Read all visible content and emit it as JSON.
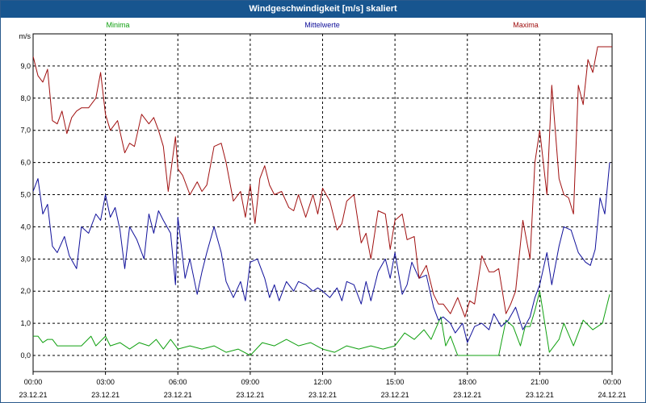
{
  "window": {
    "title": "Windgeschwindigkeit [m/s] skaliert"
  },
  "colors": {
    "min": "#10a010",
    "mean": "#10109a",
    "max": "#a01010",
    "titlebar": "#17558f"
  },
  "chart_data": {
    "type": "line",
    "title": "Windgeschwindigkeit [m/s] skaliert",
    "ylabel": "m/s",
    "xlabel": "",
    "ylim": [
      -0.5,
      10.0
    ],
    "xlim": [
      0,
      24
    ],
    "grid": true,
    "legend_placement": "top",
    "y_ticks": [
      "0,0",
      "1,0",
      "2,0",
      "3,0",
      "4,0",
      "5,0",
      "6,0",
      "7,0",
      "8,0",
      "9,0"
    ],
    "x_ticks": [
      {
        "time": "00:00",
        "date": "23.12.21"
      },
      {
        "time": "03:00",
        "date": "23.12.21"
      },
      {
        "time": "06:00",
        "date": "23.12.21"
      },
      {
        "time": "09:00",
        "date": "23.12.21"
      },
      {
        "time": "12:00",
        "date": "23.12.21"
      },
      {
        "time": "15:00",
        "date": "23.12.21"
      },
      {
        "time": "18:00",
        "date": "23.12.21"
      },
      {
        "time": "21:00",
        "date": "23.12.21"
      },
      {
        "time": "00:00",
        "date": "24.12.21"
      }
    ],
    "series": [
      {
        "name": "Minima",
        "x": [
          0.0,
          0.2,
          0.4,
          0.6,
          0.8,
          1.0,
          1.5,
          2.0,
          2.4,
          2.6,
          3.0,
          3.2,
          3.6,
          4.0,
          4.4,
          4.8,
          5.1,
          5.4,
          5.7,
          6.0,
          6.5,
          7.0,
          7.5,
          8.0,
          8.5,
          9.0,
          9.5,
          10.0,
          10.5,
          11.0,
          11.5,
          12.0,
          12.5,
          13.0,
          13.5,
          14.0,
          14.5,
          15.0,
          15.4,
          15.8,
          16.2,
          16.5,
          16.9,
          17.1,
          17.3,
          17.6,
          18.0,
          18.5,
          19.0,
          19.3,
          19.6,
          19.9,
          20.2,
          20.4,
          20.6,
          20.8,
          21.0,
          21.4,
          21.8,
          22.0,
          22.4,
          22.8,
          23.2,
          23.6,
          23.9
        ],
        "y": [
          0.6,
          0.6,
          0.4,
          0.5,
          0.5,
          0.3,
          0.3,
          0.3,
          0.6,
          0.3,
          0.6,
          0.3,
          0.4,
          0.2,
          0.4,
          0.3,
          0.5,
          0.2,
          0.5,
          0.2,
          0.3,
          0.2,
          0.3,
          0.1,
          0.2,
          0.0,
          0.4,
          0.3,
          0.5,
          0.3,
          0.4,
          0.2,
          0.1,
          0.3,
          0.2,
          0.3,
          0.2,
          0.3,
          0.7,
          0.5,
          0.8,
          0.5,
          1.2,
          0.3,
          0.6,
          0.0,
          0.0,
          0.0,
          0.0,
          0.0,
          1.1,
          0.9,
          0.3,
          0.9,
          0.9,
          1.4,
          2.0,
          0.1,
          0.5,
          1.0,
          0.3,
          1.1,
          0.8,
          1.0,
          1.9
        ]
      },
      {
        "name": "Mittelwerte",
        "x": [
          0.0,
          0.2,
          0.4,
          0.6,
          0.8,
          1.0,
          1.3,
          1.5,
          1.8,
          2.0,
          2.3,
          2.6,
          2.8,
          3.0,
          3.2,
          3.4,
          3.6,
          3.8,
          4.0,
          4.3,
          4.6,
          4.8,
          5.0,
          5.2,
          5.4,
          5.7,
          5.9,
          6.0,
          6.3,
          6.5,
          6.8,
          7.0,
          7.2,
          7.5,
          7.8,
          8.0,
          8.3,
          8.6,
          8.8,
          9.0,
          9.3,
          9.6,
          9.8,
          10.0,
          10.2,
          10.5,
          10.8,
          11.0,
          11.3,
          11.6,
          11.8,
          12.0,
          12.3,
          12.6,
          12.8,
          13.0,
          13.3,
          13.6,
          13.8,
          14.0,
          14.3,
          14.6,
          14.8,
          15.0,
          15.3,
          15.5,
          15.7,
          16.0,
          16.3,
          16.6,
          16.8,
          17.0,
          17.3,
          17.5,
          17.8,
          18.0,
          18.3,
          18.6,
          18.9,
          19.1,
          19.4,
          19.7,
          20.0,
          20.3,
          20.6,
          20.8,
          21.0,
          21.3,
          21.5,
          21.8,
          22.0,
          22.3,
          22.6,
          22.9,
          23.1,
          23.3,
          23.5,
          23.7,
          23.9
        ],
        "y": [
          5.1,
          5.5,
          4.4,
          4.7,
          3.4,
          3.2,
          3.7,
          3.1,
          2.7,
          4.0,
          3.8,
          4.4,
          4.2,
          5.0,
          4.3,
          4.6,
          3.9,
          2.7,
          4.0,
          3.6,
          3.0,
          4.4,
          3.8,
          4.5,
          4.2,
          3.8,
          2.2,
          4.3,
          2.4,
          3.0,
          1.9,
          2.6,
          3.2,
          4.0,
          3.2,
          2.3,
          1.8,
          2.3,
          1.7,
          2.9,
          3.0,
          2.4,
          1.8,
          2.2,
          1.7,
          2.3,
          2.0,
          2.3,
          2.2,
          2.0,
          2.1,
          2.0,
          1.8,
          2.1,
          1.7,
          2.3,
          2.2,
          1.6,
          2.3,
          1.7,
          2.6,
          3.0,
          2.4,
          3.2,
          1.9,
          2.2,
          2.9,
          2.4,
          2.5,
          1.5,
          1.1,
          1.2,
          1.0,
          0.7,
          1.0,
          0.4,
          0.9,
          1.0,
          0.8,
          1.3,
          0.9,
          1.1,
          1.5,
          0.8,
          1.2,
          1.8,
          2.2,
          3.2,
          2.2,
          3.4,
          4.0,
          3.9,
          3.2,
          2.9,
          2.8,
          3.3,
          4.9,
          4.4,
          6.0
        ]
      },
      {
        "name": "Maxima",
        "x": [
          0.0,
          0.2,
          0.4,
          0.6,
          0.8,
          1.0,
          1.2,
          1.4,
          1.6,
          1.8,
          2.0,
          2.3,
          2.6,
          2.8,
          3.0,
          3.2,
          3.5,
          3.8,
          4.0,
          4.2,
          4.5,
          4.8,
          5.0,
          5.2,
          5.4,
          5.6,
          5.9,
          6.0,
          6.2,
          6.5,
          6.8,
          7.0,
          7.2,
          7.5,
          7.8,
          8.0,
          8.3,
          8.6,
          8.8,
          9.0,
          9.2,
          9.4,
          9.6,
          9.8,
          10.0,
          10.3,
          10.6,
          10.8,
          11.0,
          11.3,
          11.6,
          11.8,
          12.0,
          12.3,
          12.6,
          12.8,
          13.0,
          13.3,
          13.6,
          13.8,
          14.0,
          14.3,
          14.6,
          14.8,
          15.0,
          15.3,
          15.5,
          15.8,
          16.0,
          16.3,
          16.6,
          16.8,
          17.0,
          17.3,
          17.6,
          17.9,
          18.1,
          18.3,
          18.6,
          18.9,
          19.1,
          19.3,
          19.6,
          19.8,
          20.0,
          20.3,
          20.6,
          20.8,
          21.0,
          21.3,
          21.5,
          21.8,
          22.0,
          22.2,
          22.4,
          22.6,
          22.8,
          23.0,
          23.2,
          23.4,
          23.6,
          23.8,
          24.0
        ],
        "y": [
          9.3,
          8.7,
          8.5,
          8.9,
          7.3,
          7.2,
          7.6,
          6.9,
          7.4,
          7.6,
          7.7,
          7.7,
          8.0,
          8.8,
          7.5,
          7.0,
          7.3,
          6.3,
          6.6,
          6.5,
          7.5,
          7.2,
          7.4,
          7.0,
          6.5,
          5.1,
          6.8,
          5.8,
          5.6,
          5.0,
          5.4,
          5.1,
          5.3,
          6.5,
          6.6,
          6.0,
          4.8,
          5.1,
          4.3,
          5.3,
          4.1,
          5.5,
          5.9,
          5.3,
          5.0,
          5.1,
          4.6,
          4.5,
          5.0,
          4.3,
          5.0,
          4.4,
          5.2,
          4.8,
          3.9,
          4.1,
          4.8,
          5.0,
          3.5,
          3.8,
          3.0,
          4.5,
          4.4,
          3.3,
          4.2,
          4.4,
          3.6,
          3.7,
          2.4,
          2.8,
          1.9,
          1.6,
          1.6,
          1.3,
          1.8,
          1.2,
          1.7,
          1.6,
          3.1,
          2.6,
          2.6,
          2.7,
          1.3,
          1.6,
          2.0,
          4.2,
          3.0,
          6.0,
          7.0,
          5.0,
          8.4,
          5.5,
          5.0,
          4.9,
          4.4,
          8.4,
          7.8,
          9.2,
          8.8,
          9.6,
          9.6,
          9.6,
          9.6
        ]
      }
    ]
  }
}
